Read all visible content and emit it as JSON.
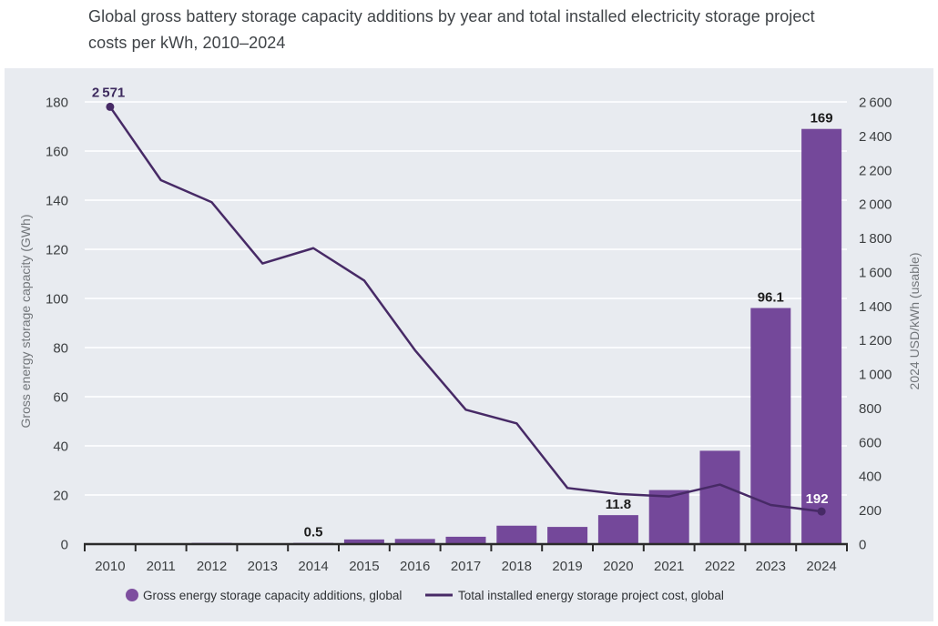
{
  "title": {
    "line1": "Global gross battery storage capacity additions by year and total installed electricity storage project",
    "line2": "costs per kWh, 2010–2024"
  },
  "chart_data": {
    "type": "combo-bar-line",
    "categories": [
      "2010",
      "2011",
      "2012",
      "2013",
      "2014",
      "2015",
      "2016",
      "2017",
      "2018",
      "2019",
      "2020",
      "2021",
      "2022",
      "2023",
      "2024"
    ],
    "series": [
      {
        "name": "Gross energy storage capacity additions, global",
        "type": "bar",
        "axis": "left",
        "unit": "GWh",
        "values": [
          0,
          0,
          0.5,
          0,
          0.5,
          1.9,
          2.1,
          3,
          7.5,
          7,
          11.8,
          22,
          38,
          96.1,
          169
        ],
        "labeled_indices": [
          4,
          10,
          13,
          14
        ],
        "color": "#74489a"
      },
      {
        "name": "Total installed energy storage project cost, global",
        "type": "line",
        "axis": "right",
        "unit": "2024 USD/kWh",
        "values": [
          2571,
          2140,
          2010,
          1650,
          1740,
          1550,
          1140,
          790,
          710,
          330,
          295,
          280,
          350,
          230,
          192
        ],
        "labeled_indices": [
          0,
          14
        ],
        "marker_indices": [
          0,
          14
        ],
        "color": "#472a66"
      }
    ],
    "axes": {
      "left": {
        "label": "Gross energy storage capacity (GWh)",
        "min": 0,
        "max": 180,
        "step": 20
      },
      "right": {
        "label": "2024 USD/kWh (usable)",
        "min": 0,
        "max": 2600,
        "step": 200
      }
    },
    "grid": true,
    "legend_position": "bottom"
  },
  "colors": {
    "panel_bg": "#e8ebf0",
    "grid": "#fafbfd",
    "axis": "#2b2b2b",
    "bar": "#74489a",
    "legend_dot": "#7e4f9f",
    "line": "#472a66",
    "bar_label": "#1c1c1c",
    "line_label_start": "#3d2a5e",
    "line_label_end": "#ffffff"
  }
}
